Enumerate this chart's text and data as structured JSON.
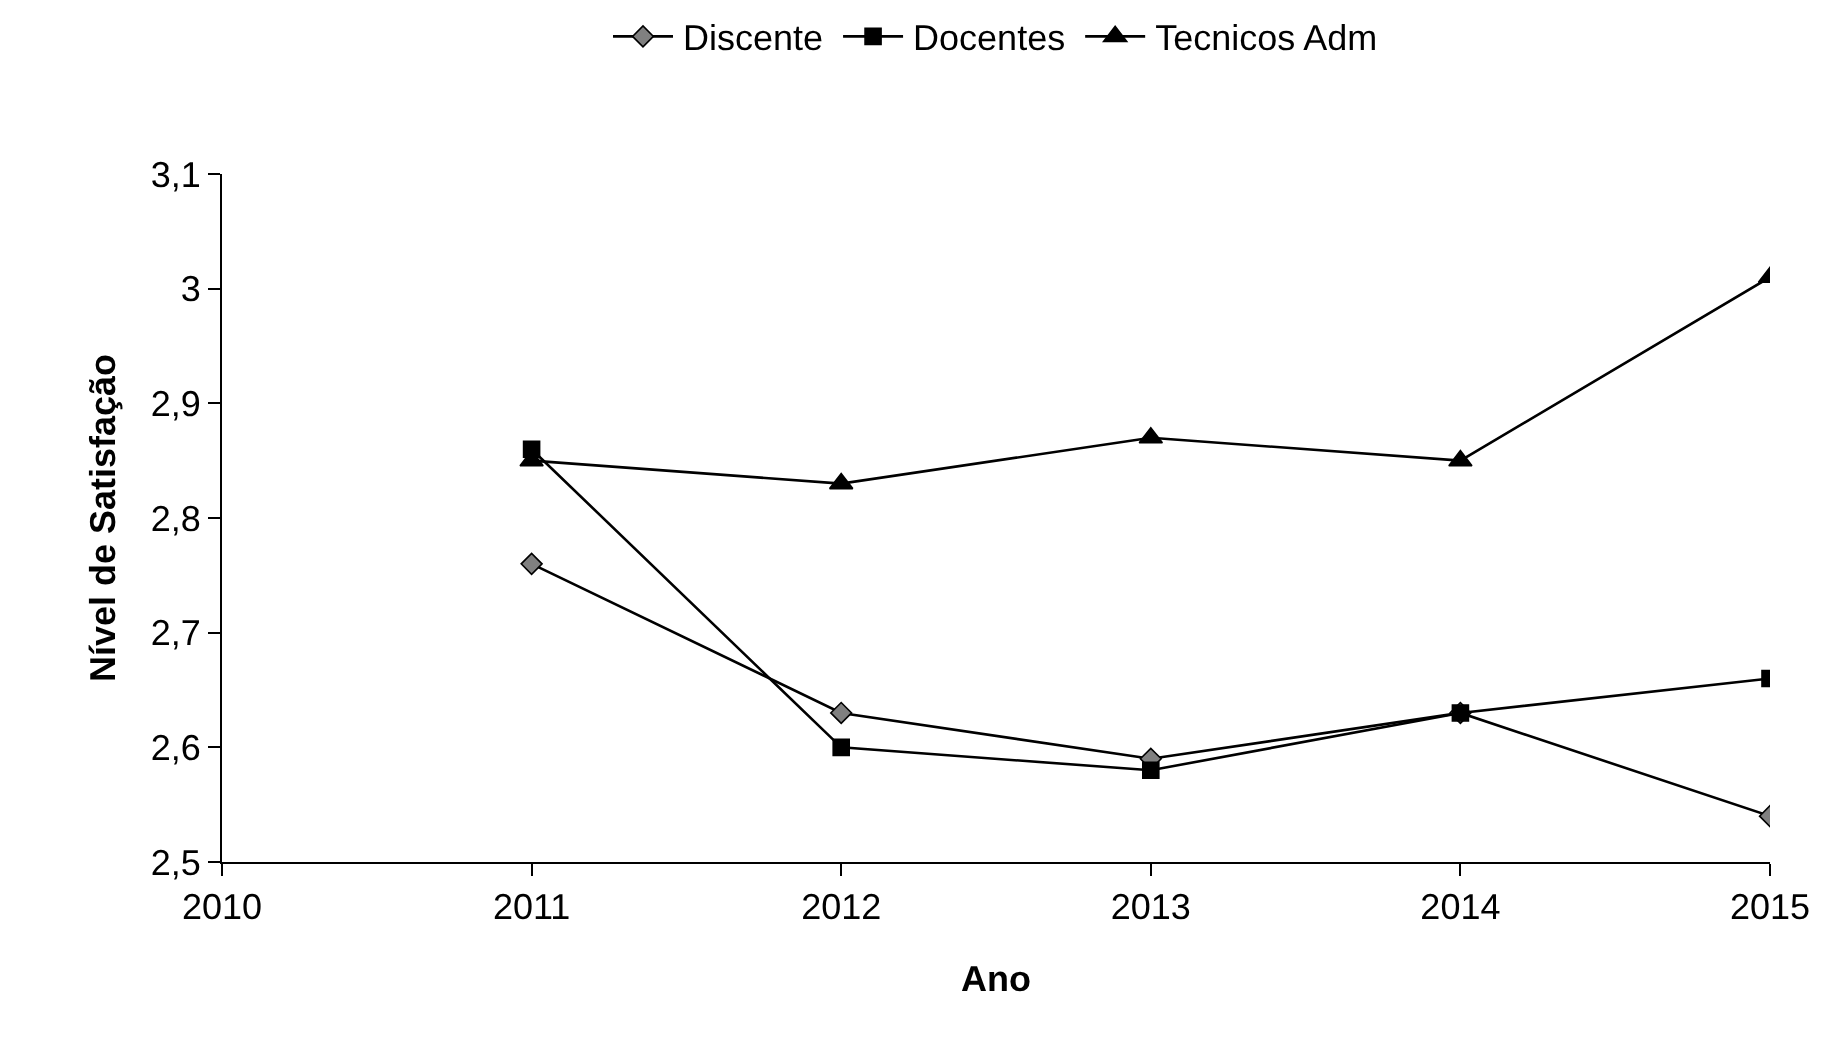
{
  "chart_data": {
    "type": "line",
    "xlabel": "Ano",
    "ylabel": "Nível de Satisfação",
    "x": [
      2011,
      2012,
      2013,
      2014,
      2015
    ],
    "series": [
      {
        "name": "Discente",
        "color": "#808080",
        "marker": "diamond",
        "values": [
          2.76,
          2.63,
          2.59,
          2.63,
          2.54
        ]
      },
      {
        "name": "Docentes",
        "color": "#000000",
        "marker": "square",
        "values": [
          2.86,
          2.6,
          2.58,
          2.63,
          2.66
        ]
      },
      {
        "name": "Tecnicos Adm",
        "color": "#000000",
        "marker": "triangle",
        "values": [
          2.85,
          2.83,
          2.87,
          2.85,
          3.01
        ]
      }
    ],
    "xlim": [
      2010,
      2015
    ],
    "xticks": [
      2010,
      2011,
      2012,
      2013,
      2014,
      2015
    ],
    "ylim": [
      2.5,
      3.1
    ],
    "yticks": [
      {
        "value": 2.5,
        "label": "2,5"
      },
      {
        "value": 2.6,
        "label": "2,6"
      },
      {
        "value": 2.7,
        "label": "2,7"
      },
      {
        "value": 2.8,
        "label": "2,8"
      },
      {
        "value": 2.9,
        "label": "2,9"
      },
      {
        "value": 3.0,
        "label": "3"
      },
      {
        "value": 3.1,
        "label": "3,1"
      }
    ],
    "grid": false,
    "legend": "top",
    "line_style": "solid"
  }
}
